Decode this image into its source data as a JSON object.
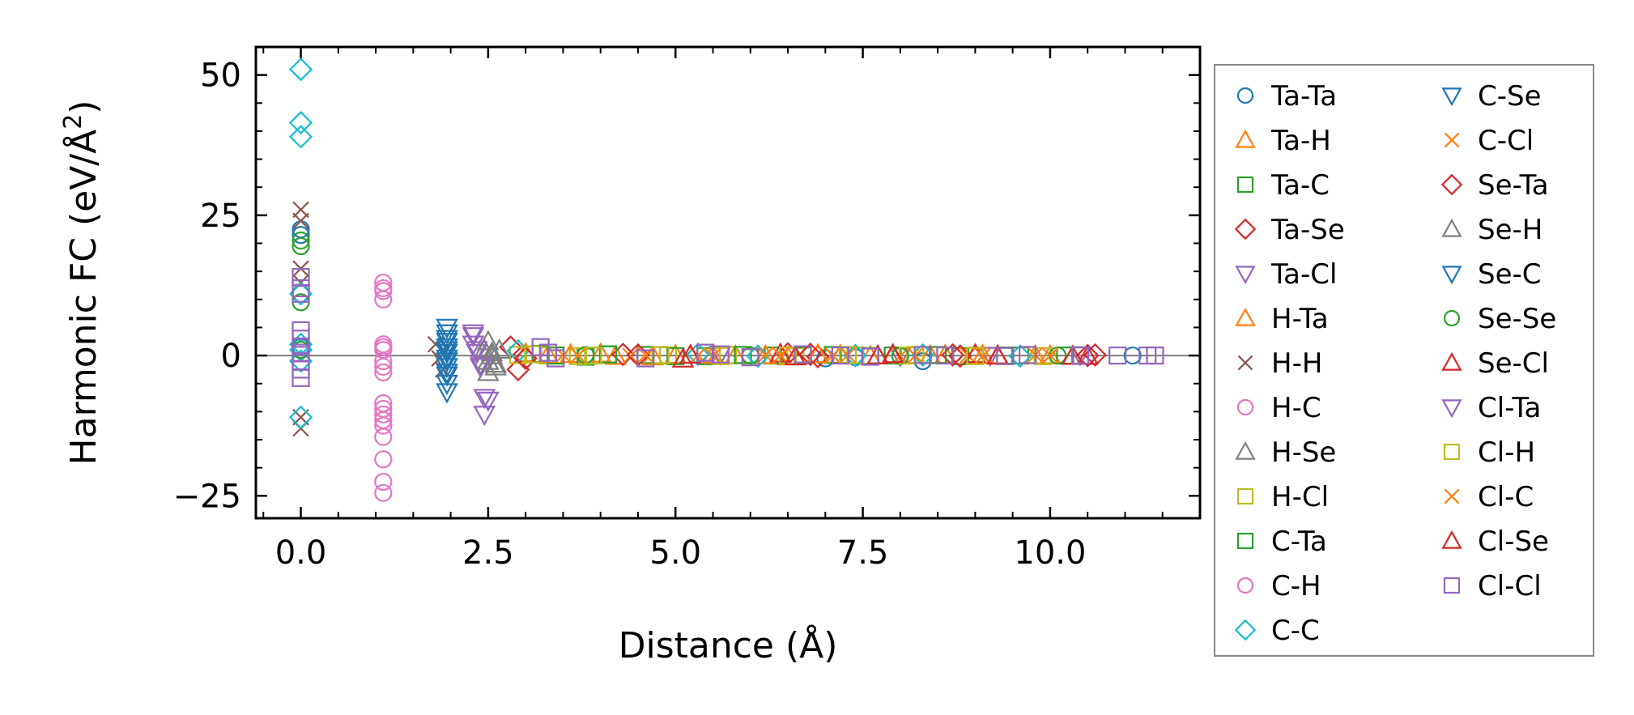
{
  "chart_data": {
    "type": "scatter",
    "title": "",
    "xlabel": "Distance (Å)",
    "ylabel": "Harmonic FC (eV/Å²)",
    "ylabel_base": "Harmonic FC (eV/Å",
    "ylabel_sup": "2",
    "ylabel_close": ")",
    "xlim": [
      -0.6,
      12.0
    ],
    "ylim": [
      -29,
      55
    ],
    "xticks": [
      0.0,
      2.5,
      5.0,
      7.5,
      10.0
    ],
    "xtick_labels": [
      "0.0",
      "2.5",
      "5.0",
      "7.5",
      "10.0"
    ],
    "yticks": [
      -25,
      0,
      25,
      50
    ],
    "ytick_labels": [
      "−25",
      "0",
      "25",
      "50"
    ],
    "zero_line": true,
    "grid": false,
    "legend_position": "outside-right",
    "legend_columns": 2,
    "series": [
      {
        "name": "Ta-Ta",
        "marker": "circle",
        "color": "#1f77b4",
        "x": [
          0.0,
          0.0,
          0.0,
          0.0,
          7.0,
          7.4,
          8.3,
          11.1
        ],
        "y": [
          22.5,
          21.5,
          11.0,
          1.5,
          -0.5,
          -0.3,
          -1.0,
          0.0
        ]
      },
      {
        "name": "Ta-H",
        "marker": "triangle-up",
        "color": "#ff7f0e",
        "x": [
          3.0,
          3.6,
          4.2,
          5.0,
          5.8,
          6.5,
          7.2,
          7.9,
          8.6,
          9.3,
          10.0
        ],
        "y": [
          0.4,
          0.2,
          -0.1,
          0.1,
          0.0,
          -0.2,
          0.1,
          0.0,
          0.1,
          -0.1,
          0.0
        ]
      },
      {
        "name": "Ta-C",
        "marker": "square",
        "color": "#2ca02c",
        "x": [
          3.2,
          3.8,
          4.6,
          5.4,
          6.3,
          7.1,
          7.9,
          8.8,
          9.6
        ],
        "y": [
          0.3,
          -0.2,
          0.1,
          -0.1,
          0.0,
          0.1,
          0.0,
          -0.1,
          0.0
        ]
      },
      {
        "name": "Ta-Se",
        "marker": "diamond",
        "color": "#d62728",
        "x": [
          2.8,
          2.9,
          4.3,
          6.5,
          6.9,
          8.7,
          10.5
        ],
        "y": [
          1.5,
          -2.5,
          0.2,
          0.3,
          -0.2,
          0.1,
          0.0
        ]
      },
      {
        "name": "Ta-Cl",
        "marker": "triangle-down",
        "color": "#9467bd",
        "x": [
          2.3,
          2.3,
          2.35,
          2.4,
          2.45,
          2.5,
          5.6,
          8.0,
          9.2,
          10.4
        ],
        "y": [
          3.5,
          2.0,
          0.5,
          -1.5,
          -10.5,
          -8.0,
          0.2,
          -0.1,
          0.0,
          0.1
        ]
      },
      {
        "name": "H-Ta",
        "marker": "triangle-up",
        "color": "#ff7f0e",
        "x": [
          3.3,
          4.0,
          4.7,
          5.5,
          6.2,
          6.9,
          7.6,
          8.4,
          9.1,
          9.8
        ],
        "y": [
          0.1,
          0.3,
          -0.2,
          0.1,
          0.0,
          0.2,
          -0.1,
          0.0,
          0.1,
          0.0
        ]
      },
      {
        "name": "H-H",
        "marker": "x",
        "color": "#8c564b",
        "x": [
          0.0,
          0.0,
          0.0,
          0.0,
          0.0,
          0.0,
          1.8,
          1.85,
          1.9,
          1.9
        ],
        "y": [
          26.0,
          24.0,
          15.5,
          13.0,
          -11.0,
          -13.0,
          2.0,
          -0.5,
          1.0,
          -2.5
        ]
      },
      {
        "name": "H-C",
        "marker": "circle",
        "color": "#e377c2",
        "x": [
          1.1,
          1.1,
          1.1,
          1.1,
          1.1,
          1.1,
          1.1,
          1.1,
          1.1,
          1.1,
          1.1,
          1.1,
          1.1,
          1.1
        ],
        "y": [
          13.0,
          12.0,
          10.0,
          2.0,
          1.0,
          -1.0,
          -3.0,
          -8.5,
          -10.5,
          -11.5,
          -12.5,
          -18.5,
          -22.5,
          -24.5
        ]
      },
      {
        "name": "H-Se",
        "marker": "triangle-up",
        "color": "#7f7f7f",
        "x": [
          2.45,
          2.5,
          2.55,
          2.6,
          2.5
        ],
        "y": [
          1.0,
          -1.0,
          0.5,
          -2.0,
          -3.0
        ]
      },
      {
        "name": "H-Cl",
        "marker": "square",
        "color": "#bcbd22",
        "x": [
          2.9,
          3.3,
          3.7,
          4.1,
          4.9,
          5.7,
          6.6,
          7.4,
          8.2,
          9.0,
          9.9
        ],
        "y": [
          0.1,
          0.0,
          -0.1,
          0.2,
          0.0,
          0.1,
          -0.1,
          0.0,
          0.1,
          0.0,
          -0.1
        ]
      },
      {
        "name": "C-Ta",
        "marker": "square",
        "color": "#2ca02c",
        "x": [
          3.4,
          4.1,
          5.0,
          5.9,
          6.7,
          7.6,
          8.5,
          9.4,
          10.2
        ],
        "y": [
          0.0,
          0.2,
          -0.1,
          0.1,
          0.0,
          -0.1,
          0.1,
          0.0,
          0.0
        ]
      },
      {
        "name": "C-H",
        "marker": "circle",
        "color": "#e377c2",
        "x": [
          1.1,
          1.1,
          1.1,
          1.1,
          1.1
        ],
        "y": [
          11.5,
          1.5,
          -2.0,
          -9.5,
          -14.5
        ]
      },
      {
        "name": "C-C",
        "marker": "diamond",
        "color": "#17becf",
        "x": [
          0.0,
          0.0,
          0.0,
          0.0,
          0.0,
          0.0,
          0.0,
          0.0,
          2.9,
          5.3,
          6.1,
          7.4,
          8.3,
          9.6
        ],
        "y": [
          51.0,
          41.5,
          39.0,
          11.0,
          2.0,
          1.0,
          -1.0,
          -11.0,
          0.8,
          0.2,
          -0.1,
          0.0,
          0.1,
          -0.1
        ]
      },
      {
        "name": "C-Se",
        "marker": "triangle-down",
        "color": "#1f77b4",
        "x": [
          1.95,
          1.95,
          1.95,
          1.95,
          1.95,
          1.95,
          1.95,
          1.95,
          1.95,
          1.95
        ],
        "y": [
          5.0,
          4.0,
          2.5,
          1.5,
          0.5,
          -0.5,
          -2.0,
          -3.5,
          -5.0,
          -6.5
        ]
      },
      {
        "name": "C-Cl",
        "marker": "x",
        "color": "#ff7f0e",
        "x": [
          3.5,
          4.4,
          5.3,
          6.2,
          7.1,
          8.0,
          8.9,
          9.8
        ],
        "y": [
          0.1,
          -0.1,
          0.0,
          0.1,
          0.0,
          -0.1,
          0.0,
          0.1
        ]
      },
      {
        "name": "Se-Ta",
        "marker": "diamond",
        "color": "#d62728",
        "x": [
          3.0,
          4.5,
          6.8,
          8.8,
          10.6
        ],
        "y": [
          -0.5,
          0.1,
          0.2,
          -0.1,
          0.1
        ]
      },
      {
        "name": "Se-H",
        "marker": "triangle-up",
        "color": "#7f7f7f",
        "x": [
          2.5,
          2.55,
          2.6,
          2.65
        ],
        "y": [
          2.5,
          0.0,
          -1.5,
          1.0
        ]
      },
      {
        "name": "Se-C",
        "marker": "triangle-down",
        "color": "#1f77b4",
        "x": [
          1.95,
          1.95,
          1.95,
          1.95
        ],
        "y": [
          3.0,
          1.0,
          -1.0,
          -3.0
        ]
      },
      {
        "name": "Se-Se",
        "marker": "circle",
        "color": "#2ca02c",
        "x": [
          0.0,
          0.0,
          0.0,
          0.0,
          3.8,
          6.0,
          8.0,
          10.1
        ],
        "y": [
          20.5,
          19.5,
          9.5,
          1.0,
          0.1,
          0.0,
          -0.1,
          0.0
        ]
      },
      {
        "name": "Se-Cl",
        "marker": "triangle-up",
        "color": "#d62728",
        "x": [
          5.1,
          6.4,
          7.7,
          9.0,
          10.3
        ],
        "y": [
          -0.6,
          0.3,
          0.0,
          0.2,
          -0.1
        ]
      },
      {
        "name": "Cl-Ta",
        "marker": "triangle-down",
        "color": "#9467bd",
        "x": [
          2.3,
          2.35,
          2.4,
          2.45
        ],
        "y": [
          4.0,
          1.0,
          -2.0,
          -7.5
        ]
      },
      {
        "name": "Cl-H",
        "marker": "square",
        "color": "#bcbd22",
        "x": [
          3.1,
          3.9,
          4.8,
          5.6,
          6.5,
          7.3,
          8.1,
          9.0
        ],
        "y": [
          0.2,
          0.0,
          0.1,
          -0.1,
          0.0,
          0.1,
          0.0,
          -0.1
        ]
      },
      {
        "name": "Cl-C",
        "marker": "x",
        "color": "#ff7f0e",
        "x": [
          3.7,
          4.6,
          5.5,
          6.4,
          7.3,
          8.2,
          9.1,
          10.0
        ],
        "y": [
          0.0,
          0.1,
          -0.1,
          0.0,
          0.1,
          0.0,
          -0.1,
          0.0
        ]
      },
      {
        "name": "Cl-Se",
        "marker": "triangle-up",
        "color": "#d62728",
        "x": [
          5.2,
          6.6,
          7.9,
          9.3,
          10.5
        ],
        "y": [
          0.1,
          -0.2,
          0.2,
          0.0,
          -0.1
        ]
      },
      {
        "name": "Cl-Cl",
        "marker": "square",
        "color": "#9467bd",
        "x": [
          0.0,
          0.0,
          0.0,
          0.0,
          0.0,
          0.0,
          0.0,
          0.0,
          0.0,
          0.0,
          3.2,
          3.3,
          3.4,
          4.6,
          5.4,
          5.6,
          6.0,
          6.7,
          7.2,
          7.6,
          8.3,
          8.6,
          9.4,
          9.7,
          10.4,
          10.9,
          11.3,
          11.4
        ],
        "y": [
          14.0,
          12.0,
          11.0,
          4.5,
          3.0,
          1.5,
          0.5,
          -1.0,
          -2.5,
          -4.0,
          1.5,
          0.5,
          -0.5,
          -0.5,
          0.5,
          0.2,
          -0.3,
          0.2,
          0.0,
          -0.2,
          0.1,
          0.0,
          -0.1,
          0.1,
          0.0,
          0.0,
          0.0,
          0.0
        ]
      }
    ]
  }
}
